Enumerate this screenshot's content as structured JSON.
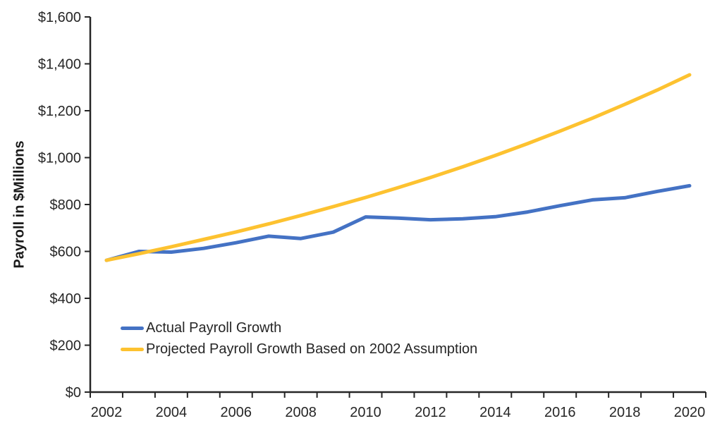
{
  "chart_data": {
    "type": "line",
    "title": "",
    "xlabel": "",
    "ylabel": "Payroll in $Millions",
    "x": [
      2002,
      2003,
      2004,
      2005,
      2006,
      2007,
      2008,
      2009,
      2010,
      2011,
      2012,
      2013,
      2014,
      2015,
      2016,
      2017,
      2018,
      2019,
      2020
    ],
    "x_tick_labels": [
      "2002",
      "2004",
      "2006",
      "2008",
      "2010",
      "2012",
      "2014",
      "2016",
      "2018",
      "2020"
    ],
    "y_ticks": [
      0,
      200,
      400,
      600,
      800,
      1000,
      1200,
      1400,
      1600
    ],
    "y_tick_labels": [
      "$0",
      "$200",
      "$400",
      "$600",
      "$800",
      "$1,000",
      "$1,200",
      "$1,400",
      "$1,600"
    ],
    "ylim": [
      0,
      1600
    ],
    "grid": false,
    "legend_position": "inside-lower-left",
    "axis_color": "#262626",
    "text_color": "#262626",
    "series": [
      {
        "name": "Actual Payroll Growth",
        "color": "#4472C4",
        "values": [
          562,
          600,
          597,
          613,
          637,
          665,
          655,
          682,
          747,
          742,
          735,
          739,
          748,
          768,
          795,
          820,
          829,
          856,
          880
        ]
      },
      {
        "name": "Projected Payroll Growth Based on 2002 Assumption",
        "color": "#FDC230",
        "values": [
          562,
          590,
          620,
          651,
          683,
          717,
          753,
          791,
          830,
          872,
          915,
          961,
          1009,
          1060,
          1113,
          1168,
          1227,
          1288,
          1353
        ]
      }
    ]
  }
}
